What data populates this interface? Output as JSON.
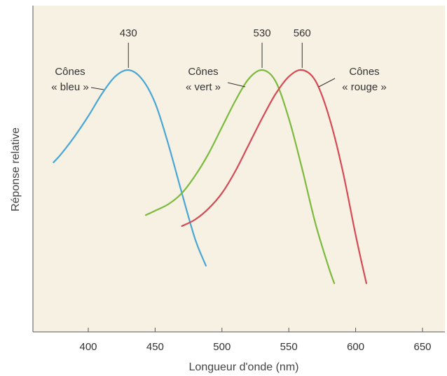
{
  "chart_data": {
    "type": "line",
    "title": "",
    "xlabel": "Longueur d'onde (nm)",
    "ylabel": "Réponse relative",
    "xlim": [
      362,
      640
    ],
    "ylim": [
      0,
      1.1
    ],
    "x_ticks": [
      "400",
      "450",
      "500",
      "550",
      "600",
      "650"
    ],
    "grid": false,
    "background_color": "#f6f1e2",
    "series": [
      {
        "key": "blue",
        "label_lines": [
          "Cônes",
          "« bleu »"
        ],
        "peak": 430,
        "peak_label": "430",
        "color": "#4aa6d6",
        "x": [
          374,
          380,
          390,
          400,
          410,
          420,
          430,
          440,
          450,
          460,
          470,
          480,
          488
        ],
        "y": [
          0.58,
          0.62,
          0.7,
          0.79,
          0.89,
          0.97,
          1.0,
          0.96,
          0.85,
          0.66,
          0.44,
          0.23,
          0.11
        ]
      },
      {
        "key": "green",
        "label_lines": [
          "Cônes",
          "« vert »"
        ],
        "peak": 530,
        "peak_label": "530",
        "color": "#7cba3e",
        "x": [
          443,
          450,
          460,
          470,
          480,
          490,
          500,
          510,
          520,
          530,
          540,
          550,
          560,
          570,
          580,
          584
        ],
        "y": [
          0.34,
          0.36,
          0.39,
          0.44,
          0.52,
          0.62,
          0.74,
          0.86,
          0.96,
          1.0,
          0.95,
          0.78,
          0.55,
          0.3,
          0.1,
          0.03
        ]
      },
      {
        "key": "red",
        "label_lines": [
          "Cônes",
          "« rouge »"
        ],
        "peak": 560,
        "peak_label": "560",
        "color": "#d64a55",
        "x": [
          470,
          480,
          490,
          500,
          510,
          520,
          530,
          540,
          550,
          560,
          570,
          580,
          590,
          600,
          608
        ],
        "y": [
          0.29,
          0.32,
          0.37,
          0.44,
          0.54,
          0.66,
          0.78,
          0.89,
          0.97,
          1.0,
          0.95,
          0.79,
          0.55,
          0.25,
          0.03
        ]
      }
    ]
  }
}
